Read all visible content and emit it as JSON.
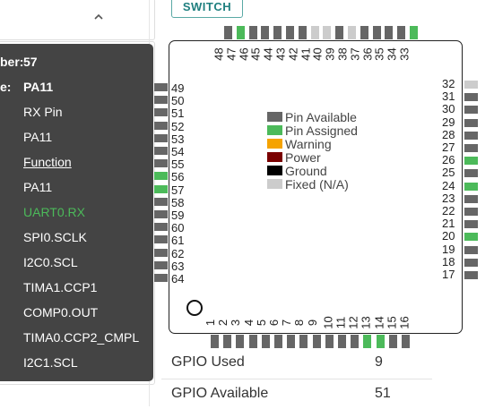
{
  "switch_button": "SWITCH",
  "legend": [
    {
      "label": "Pin Available",
      "color": "#666666"
    },
    {
      "label": "Pin Assigned",
      "color": "#4cba5a"
    },
    {
      "label": "Warning",
      "color": "#f5a300"
    },
    {
      "label": "Power",
      "color": "#7a0000"
    },
    {
      "label": "Ground",
      "color": "#000000"
    },
    {
      "label": "Fixed (N/A)",
      "color": "#cccccc"
    }
  ],
  "pins": {
    "left": [
      "49",
      "50",
      "51",
      "52",
      "53",
      "54",
      "55",
      "56",
      "57",
      "58",
      "59",
      "60",
      "61",
      "62",
      "63",
      "64"
    ],
    "left_states": [
      "available",
      "available",
      "available",
      "available",
      "available",
      "available",
      "available",
      "assigned",
      "assigned",
      "available",
      "available",
      "available",
      "available",
      "available",
      "available",
      "available"
    ],
    "bottom": [
      "1",
      "2",
      "3",
      "4",
      "5",
      "6",
      "7",
      "8",
      "9",
      "10",
      "11",
      "12",
      "13",
      "14",
      "15",
      "16"
    ],
    "bottom_states": [
      "available",
      "available",
      "available",
      "available",
      "available",
      "available",
      "available",
      "available",
      "available",
      "available",
      "available",
      "available",
      "assigned",
      "assigned",
      "available",
      "available"
    ],
    "right": [
      "32",
      "31",
      "30",
      "29",
      "28",
      "27",
      "26",
      "25",
      "24",
      "23",
      "22",
      "21",
      "20",
      "19",
      "18",
      "17"
    ],
    "right_states": [
      "fixed",
      "available",
      "available",
      "available",
      "available",
      "available",
      "assigned",
      "available",
      "assigned",
      "available",
      "available",
      "available",
      "assigned",
      "available",
      "available",
      "available"
    ],
    "top": [
      "48",
      "47",
      "46",
      "45",
      "44",
      "43",
      "42",
      "41",
      "40",
      "39",
      "38",
      "37",
      "36",
      "35",
      "34",
      "33"
    ],
    "top_states": [
      "available",
      "assigned",
      "available",
      "available",
      "available",
      "available",
      "available",
      "fixed",
      "fixed",
      "available",
      "fixed",
      "available",
      "available",
      "available",
      "available",
      "assigned"
    ]
  },
  "stats": [
    {
      "label": "GPIO Used",
      "value": "9"
    },
    {
      "label": "GPIO Available",
      "value": "51"
    }
  ],
  "tooltip": {
    "pin_number_label": "ber:",
    "pin_number_value": "57",
    "name_label": "e:",
    "name_value": "PA11",
    "rows": [
      {
        "text": "RX Pin",
        "style": "normal"
      },
      {
        "text": "PA11",
        "style": "normal"
      },
      {
        "text": "Function",
        "style": "underline"
      },
      {
        "text": "PA11",
        "style": "normal"
      },
      {
        "text": "UART0.RX",
        "style": "green"
      },
      {
        "text": "SPI0.SCLK",
        "style": "normal"
      },
      {
        "text": "I2C0.SCL",
        "style": "normal"
      },
      {
        "text": "TIMA1.CCP1",
        "style": "normal"
      },
      {
        "text": "COMP0.OUT",
        "style": "normal"
      },
      {
        "text": "TIMA0.CCP2_CMPL",
        "style": "normal"
      },
      {
        "text": "I2C1.SCL",
        "style": "normal"
      }
    ]
  }
}
